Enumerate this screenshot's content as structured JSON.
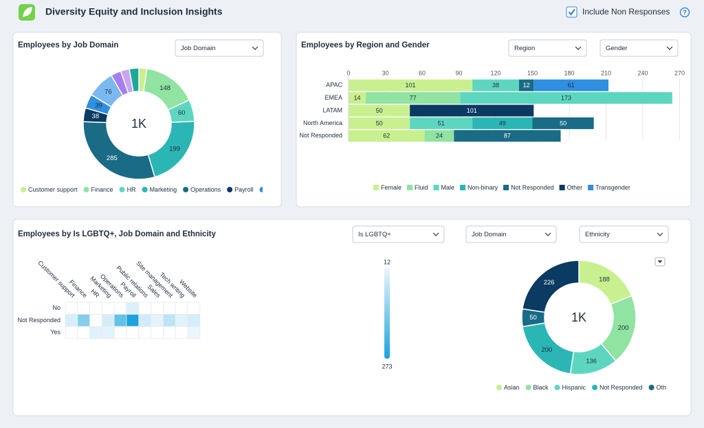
{
  "header": {
    "title": "Diversity Equity and Inclusion Insights",
    "checkbox_label": "Include Non Responses",
    "checked": true,
    "help": "?"
  },
  "chart_data": [
    {
      "type": "donut",
      "title": "Employees by Job Domain",
      "controls": [
        "Job Domain"
      ],
      "center_label": "1K",
      "categories": [
        "Customer support",
        "Finance",
        "HR",
        "Marketing",
        "Operations",
        "Payroll",
        "Public relations",
        "Sales",
        "Site management",
        "Tech writing",
        "Website"
      ],
      "values": [
        22,
        148,
        60,
        199,
        285,
        38,
        39,
        76,
        28,
        24,
        26
      ],
      "colors": [
        "#c8f08f",
        "#90e3a0",
        "#5dd6c0",
        "#2bb5b5",
        "#1a6b85",
        "#0b3a63",
        "#2f8fe0",
        "#7ab8f0",
        "#a77ef0",
        "#c9a6f3",
        "#1fa89a"
      ]
    },
    {
      "type": "bar",
      "orientation": "horizontal",
      "stacked": true,
      "title": "Employees by Region and Gender",
      "controls": [
        "Region",
        "Gender"
      ],
      "categories": [
        "APAC",
        "EMEA",
        "LATAM",
        "North America",
        "Not Responded"
      ],
      "series": [
        {
          "name": "Female",
          "color": "#c8f08f",
          "values": [
            101,
            14,
            50,
            50,
            62
          ]
        },
        {
          "name": "Fluid",
          "color": "#90e3a0",
          "values": [
            null,
            77,
            null,
            null,
            24
          ]
        },
        {
          "name": "Male",
          "color": "#5dd6c0",
          "values": [
            38,
            173,
            null,
            51,
            null
          ]
        },
        {
          "name": "Non-binary",
          "color": "#2bb5b5",
          "values": [
            null,
            null,
            null,
            49,
            null
          ]
        },
        {
          "name": "Not Responded",
          "color": "#1a6b85",
          "values": [
            12,
            null,
            null,
            50,
            87
          ]
        },
        {
          "name": "Other",
          "color": "#0b3a63",
          "values": [
            null,
            null,
            101,
            null,
            null
          ]
        },
        {
          "name": "Transgender",
          "color": "#2f8fe0",
          "values": [
            61,
            null,
            null,
            null,
            null
          ]
        }
      ],
      "xlim": [
        0,
        270
      ],
      "xticks": [
        0,
        30,
        60,
        90,
        120,
        150,
        180,
        210,
        240,
        270
      ],
      "grid": true
    },
    {
      "type": "heatmap",
      "title": "Employees by Is LGBTQ+, Job Domain and Ethnicity",
      "controls": [
        "Is LGBTQ+",
        "Job Domain",
        "Ethnicity"
      ],
      "x": [
        "Customer support",
        "Finance",
        "HR",
        "Marketing",
        "Operations",
        "Payroll",
        "Public relations",
        "Sales",
        "Site management",
        "Tech writing",
        "Website"
      ],
      "y": [
        "No",
        "Not Responded",
        "Yes"
      ],
      "values": [
        [
          null,
          null,
          null,
          null,
          null,
          30,
          null,
          null,
          null,
          null,
          null
        ],
        [
          35,
          140,
          null,
          40,
          180,
          273,
          45,
          20,
          70,
          25,
          40
        ],
        [
          null,
          null,
          25,
          22,
          null,
          null,
          null,
          null,
          null,
          null,
          12
        ]
      ],
      "zlim": [
        12,
        273
      ],
      "zticks": [
        12,
        273
      ],
      "colorscale": [
        "#eaf6fd",
        "#1aa3dc"
      ]
    },
    {
      "type": "donut",
      "center_label": "1K",
      "categories": [
        "Asian",
        "Black",
        "Hispanic",
        "Not Responded",
        "Other",
        null
      ],
      "values": [
        188,
        200,
        136,
        200,
        50,
        226
      ],
      "colors": [
        "#c8f08f",
        "#90e3a0",
        "#5dd6c0",
        "#2bb5b5",
        "#1a6b85",
        "#0b3a63"
      ]
    }
  ]
}
